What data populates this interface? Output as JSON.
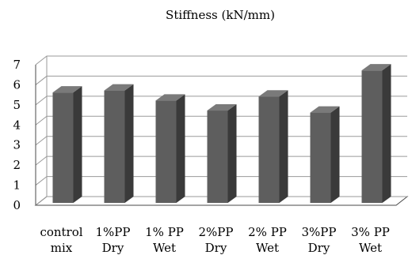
{
  "chart_data": {
    "type": "bar",
    "title": "Stiffness (kN/mm)",
    "xlabel": "",
    "ylabel": "",
    "categories": [
      [
        "control",
        "mix"
      ],
      [
        "1%PP",
        "Dry"
      ],
      [
        "1% PP",
        "Wet"
      ],
      [
        "2%PP",
        "Dry"
      ],
      [
        "2% PP",
        "Wet"
      ],
      [
        "3%PP",
        "Dry"
      ],
      [
        "3% PP",
        "Wet"
      ]
    ],
    "values": [
      5.5,
      5.6,
      5.1,
      4.6,
      5.3,
      4.5,
      6.6
    ],
    "ylim": [
      0,
      7
    ],
    "yticks": [
      0,
      1,
      2,
      3,
      4,
      5,
      6,
      7
    ],
    "grid": true,
    "legend": "none",
    "style": "3d-columns",
    "colors": {
      "bar_front": "#5e5e5e",
      "bar_side": "#3a3a3a",
      "bar_top": "#7a7a7a",
      "grid": "#9a9a9a",
      "axis": "#4a4a4a"
    }
  }
}
